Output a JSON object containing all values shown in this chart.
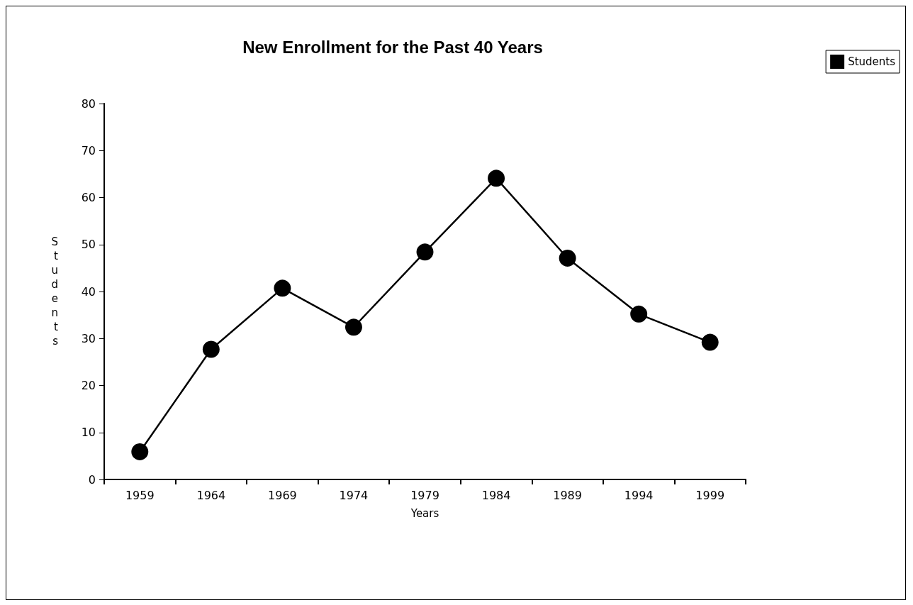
{
  "chart_data": {
    "type": "line",
    "title": "New Enrollment for the Past 40 Years",
    "xlabel": "Years",
    "ylabel": "Students",
    "categories": [
      "1959",
      "1964",
      "1969",
      "1974",
      "1979",
      "1984",
      "1989",
      "1994",
      "1999"
    ],
    "series": [
      {
        "name": "Students",
        "color": "#000000",
        "values": [
          5.9,
          27.7,
          40.7,
          32.4,
          48.4,
          64.1,
          47.1,
          35.2,
          29.2
        ]
      }
    ],
    "ylim": [
      0,
      80
    ],
    "yticks": [
      0,
      10,
      20,
      30,
      40,
      50,
      60,
      70,
      80
    ],
    "grid": false,
    "legend": "top right",
    "marker": "circle",
    "line_style": "solid"
  }
}
